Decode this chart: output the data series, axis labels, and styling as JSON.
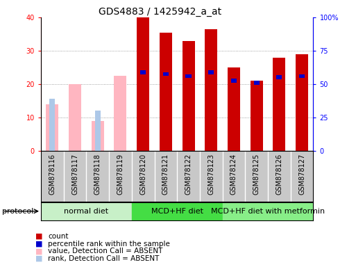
{
  "title": "GDS4883 / 1425942_a_at",
  "samples": [
    "GSM878116",
    "GSM878117",
    "GSM878118",
    "GSM878119",
    "GSM878120",
    "GSM878121",
    "GSM878122",
    "GSM878123",
    "GSM878124",
    "GSM878125",
    "GSM878126",
    "GSM878127"
  ],
  "count_values": [
    0,
    0,
    0,
    0,
    40,
    35.5,
    33,
    36.5,
    25,
    21,
    28,
    29
  ],
  "rank_values": [
    0,
    0,
    0,
    0,
    59,
    57.5,
    56,
    59,
    52.5,
    51,
    55,
    56
  ],
  "absent_value_values": [
    14,
    20,
    9,
    22.5,
    0,
    0,
    0,
    0,
    0,
    0,
    0,
    0
  ],
  "absent_rank_values": [
    39,
    0,
    30,
    0,
    0,
    0,
    0,
    0,
    0,
    0,
    0,
    0
  ],
  "is_absent": [
    true,
    true,
    true,
    true,
    false,
    false,
    false,
    false,
    false,
    false,
    false,
    false
  ],
  "protocols": [
    {
      "label": "normal diet",
      "start": 0,
      "end": 3,
      "color": "#c8f0c8"
    },
    {
      "label": "MCD+HF diet",
      "start": 4,
      "end": 7,
      "color": "#44dd44"
    },
    {
      "label": "MCD+HF diet with metformin",
      "start": 8,
      "end": 11,
      "color": "#88ee88"
    }
  ],
  "ylim_left": [
    0,
    40
  ],
  "ylim_right": [
    0,
    100
  ],
  "yticks_left": [
    0,
    10,
    20,
    30,
    40
  ],
  "yticks_right": [
    0,
    25,
    50,
    75,
    100
  ],
  "color_count": "#cc0000",
  "color_rank": "#0000cc",
  "color_absent_value": "#ffb6c1",
  "color_absent_rank": "#adc8e8",
  "bar_width": 0.55,
  "rank_bar_width": 0.25,
  "title_fontsize": 10,
  "tick_fontsize": 7,
  "legend_fontsize": 7.5,
  "protocol_label_fontsize": 8,
  "background_color": "#ffffff",
  "grid_color": "#888888",
  "xlabel_bg": "#c8c8c8"
}
